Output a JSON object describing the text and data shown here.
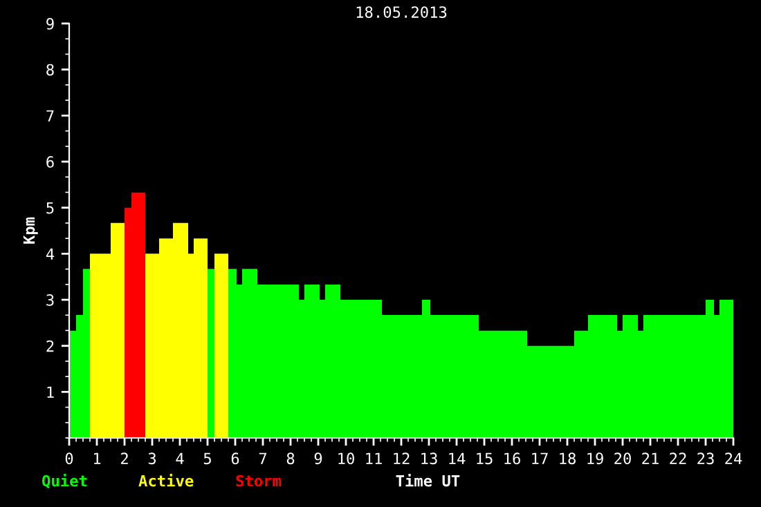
{
  "chart_data": {
    "type": "histogram",
    "title": "18.05.2013",
    "xlabel": "Time UT",
    "ylabel": "Kpm",
    "bins": [
      0,
      0.25,
      0.5,
      0.75,
      1.5,
      2,
      2.25,
      2.75,
      3.25,
      3.75,
      4.3,
      4.5,
      5,
      5.25,
      5.75,
      6.05,
      6.25,
      6.8,
      8.3,
      8.5,
      9.05,
      9.25,
      9.8,
      11.3,
      12.75,
      13.05,
      14.8,
      16.55,
      18.25,
      18.75,
      19.8,
      20,
      20.55,
      20.75,
      23,
      23.3,
      23.5,
      24
    ],
    "series": [
      {
        "name": "Quiet",
        "color": "#00ff00",
        "values": [
          2.33,
          2.67,
          3.67,
          null,
          null,
          null,
          null,
          null,
          null,
          null,
          null,
          null,
          3.67,
          null,
          3.67,
          3.33,
          3.67,
          3.33,
          3.0,
          3.33,
          3.0,
          3.33,
          3.0,
          2.67,
          3.0,
          2.67,
          2.33,
          2.0,
          2.33,
          2.67,
          2.33,
          2.67,
          2.33,
          2.67,
          3.0,
          2.67,
          3.0
        ]
      },
      {
        "name": "Active",
        "color": "#ffff00",
        "values": [
          null,
          null,
          null,
          4.0,
          4.67,
          null,
          null,
          4.0,
          4.33,
          4.67,
          4.0,
          4.33,
          null,
          4.0,
          null,
          null,
          null,
          null,
          null,
          null,
          null,
          null,
          null,
          null,
          null,
          null,
          null,
          null,
          null,
          null,
          null,
          null,
          null,
          null,
          null,
          null,
          null
        ]
      },
      {
        "name": "Storm",
        "color": "#ff0000",
        "values": [
          null,
          null,
          null,
          null,
          null,
          5.0,
          5.33,
          null,
          null,
          null,
          null,
          null,
          null,
          null,
          null,
          null,
          null,
          null,
          null,
          null,
          null,
          null,
          null,
          null,
          null,
          null,
          null,
          null,
          null,
          null,
          null,
          null,
          null,
          null,
          null,
          null,
          null
        ]
      }
    ],
    "xlim": [
      0,
      24
    ],
    "xticks": [
      0,
      1,
      2,
      3,
      4,
      5,
      6,
      7,
      8,
      9,
      10,
      11,
      12,
      13,
      14,
      15,
      16,
      17,
      18,
      19,
      20,
      21,
      22,
      23,
      24
    ],
    "ylim": [
      0,
      9
    ],
    "yticks": [
      1,
      2,
      3,
      4,
      5,
      6,
      7,
      8,
      9
    ],
    "legend": "bottom left",
    "grid": false
  }
}
